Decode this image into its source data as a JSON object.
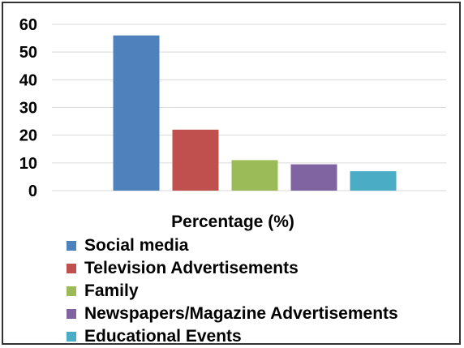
{
  "chart_data": {
    "type": "bar",
    "categories": [
      "Social media",
      "Television Advertisements",
      "Family",
      "Newspapers/Magazine Advertisements",
      "Educational Events"
    ],
    "values": [
      56,
      22,
      11,
      9.5,
      7
    ],
    "colors": [
      "#4f81bd",
      "#c0504d",
      "#9bbb59",
      "#8064a2",
      "#4bacc6"
    ],
    "xlabel": "Percentage (%)",
    "ylabel": "",
    "ylim": [
      0,
      60
    ],
    "yticks": [
      "0",
      "10",
      "20",
      "30",
      "40",
      "50",
      "60"
    ],
    "grid": true,
    "legend_position": "bottom"
  }
}
